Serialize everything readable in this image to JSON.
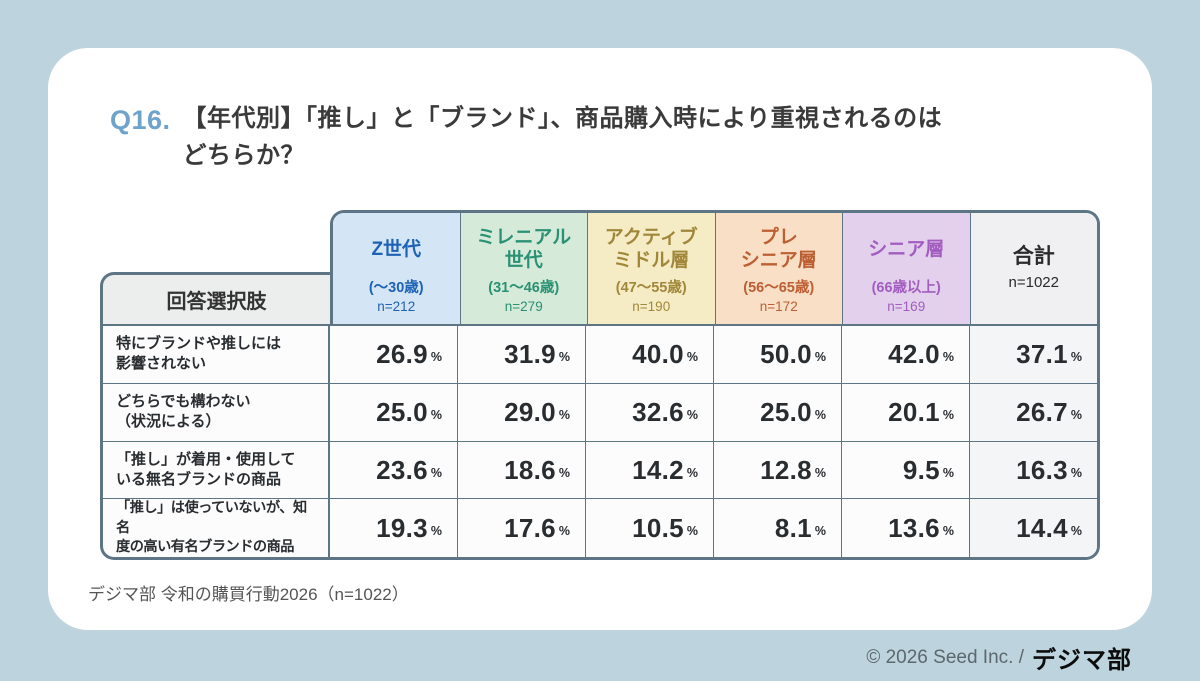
{
  "title": {
    "q_label": "Q16.",
    "text": "【年代別】「推し」と「ブランド」、商品購入時により重視されるのは\nどちらか？"
  },
  "table": {
    "row_header_label": "回答選択肢",
    "unit": "%",
    "columns": [
      {
        "name": "Z世代",
        "age": "(〜30歳)",
        "n": "n=212",
        "bg": "#d4e5f5",
        "color": "#1d62b4"
      },
      {
        "name": "ミレニアル\n世代",
        "age": "(31〜46歳)",
        "n": "n=279",
        "bg": "#d5ead9",
        "color": "#2a9174"
      },
      {
        "name": "アクティブ\nミドル層",
        "age": "(47〜55歳)",
        "n": "n=190",
        "bg": "#f5ecc6",
        "color": "#a0873a"
      },
      {
        "name": "プレ\nシニア層",
        "age": "(56〜65歳)",
        "n": "n=172",
        "bg": "#f8dfc6",
        "color": "#bd5f33"
      },
      {
        "name": "シニア層",
        "age": "(66歳以上)",
        "n": "n=169",
        "bg": "#e2d0ec",
        "color": "#a35cc0"
      },
      {
        "name": "合計",
        "age": "",
        "n": "n=1022",
        "bg": "#f0f0f2",
        "color": "#2b2b2b"
      }
    ],
    "rows": [
      {
        "label": "特にブランドや推しには\n影響されない",
        "values": [
          "26.9",
          "31.9",
          "40.0",
          "50.0",
          "42.0",
          "37.1"
        ]
      },
      {
        "label": "どちらでも構わない\n（状況による）",
        "values": [
          "25.0",
          "29.0",
          "32.6",
          "25.0",
          "20.1",
          "26.7"
        ]
      },
      {
        "label": "「推し」が着用・使用して\nいる無名ブランドの商品",
        "values": [
          "23.6",
          "18.6",
          "14.2",
          "12.8",
          "9.5",
          "16.3"
        ]
      },
      {
        "label": "「推し」は使っていないが、知名\n度の高い有名ブランドの商品",
        "values": [
          "19.3",
          "17.6",
          "10.5",
          "8.1",
          "13.6",
          "14.4"
        ]
      }
    ]
  },
  "source": {
    "text": "デジマ部 令和の購買行動2026（n=1022）"
  },
  "footer": {
    "copyright": "© 2026 Seed Inc. /",
    "logo_text": "デジマ部"
  },
  "colors": {
    "page_bg": "#bdd3dd",
    "card_bg": "#ffffff",
    "table_border": "#5d7585",
    "q_label": "#6ea3cb"
  },
  "chart_data": {
    "type": "table",
    "title": "Q16.【年代別】「推し」と「ブランド」、商品購入時により重視されるのはどちらか？",
    "columns": [
      "Z世代 (〜30歳) n=212",
      "ミレニアル世代 (31〜46歳) n=279",
      "アクティブミドル層 (47〜55歳) n=190",
      "プレシニア層 (56〜65歳) n=172",
      "シニア層 (66歳以上) n=169",
      "合計 n=1022"
    ],
    "row_labels": [
      "特にブランドや推しには影響されない",
      "どちらでも構わない（状況による）",
      "「推し」が着用・使用している無名ブランドの商品",
      "「推し」は使っていないが、知名度の高い有名ブランドの商品"
    ],
    "values_percent": [
      [
        26.9,
        31.9,
        40.0,
        50.0,
        42.0,
        37.1
      ],
      [
        25.0,
        29.0,
        32.6,
        25.0,
        20.1,
        26.7
      ],
      [
        23.6,
        18.6,
        14.2,
        12.8,
        9.5,
        16.3
      ],
      [
        19.3,
        17.6,
        10.5,
        8.1,
        13.6,
        14.4
      ]
    ],
    "source": "デジマ部 令和の購買行動2026（n=1022）"
  }
}
